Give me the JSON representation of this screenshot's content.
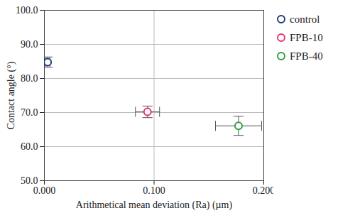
{
  "chart_data": {
    "type": "scatter",
    "x_label": "Arithmetical mean deviation (Ra) (µm)",
    "y_label": "Contact angle (°)",
    "xlim": [
      0,
      0.2
    ],
    "xticks": [
      {
        "value": 0,
        "label": "0.000"
      },
      {
        "value": 0.1,
        "label": "0.100"
      },
      {
        "value": 0.2,
        "label": "0.200"
      }
    ],
    "ylim": [
      50,
      100
    ],
    "yticks": [
      {
        "value": 50,
        "label": "50.0"
      },
      {
        "value": 60,
        "label": "60.0"
      },
      {
        "value": 70,
        "label": "70.0"
      },
      {
        "value": 80,
        "label": "80.0"
      },
      {
        "value": 90,
        "label": "90.0"
      },
      {
        "value": 100,
        "label": "100.0"
      }
    ],
    "grid": true,
    "legend": "right",
    "marker": "open circle",
    "series": [
      {
        "name": "control",
        "color": "#1f3a7a",
        "x": [
          0.003
        ],
        "values": [
          84.8
        ],
        "x_error": [
          0.002
        ],
        "y_error": [
          1.5
        ]
      },
      {
        "name": "FPB-10",
        "color": "#e6336b",
        "x": [
          0.094
        ],
        "values": [
          70.2
        ],
        "x_error": [
          0.011
        ],
        "y_error": [
          1.7
        ]
      },
      {
        "name": "FPB-40",
        "color": "#2e9e44",
        "x": [
          0.177
        ],
        "values": [
          66.1
        ],
        "x_error": [
          0.021
        ],
        "y_error": [
          2.8
        ]
      }
    ]
  }
}
